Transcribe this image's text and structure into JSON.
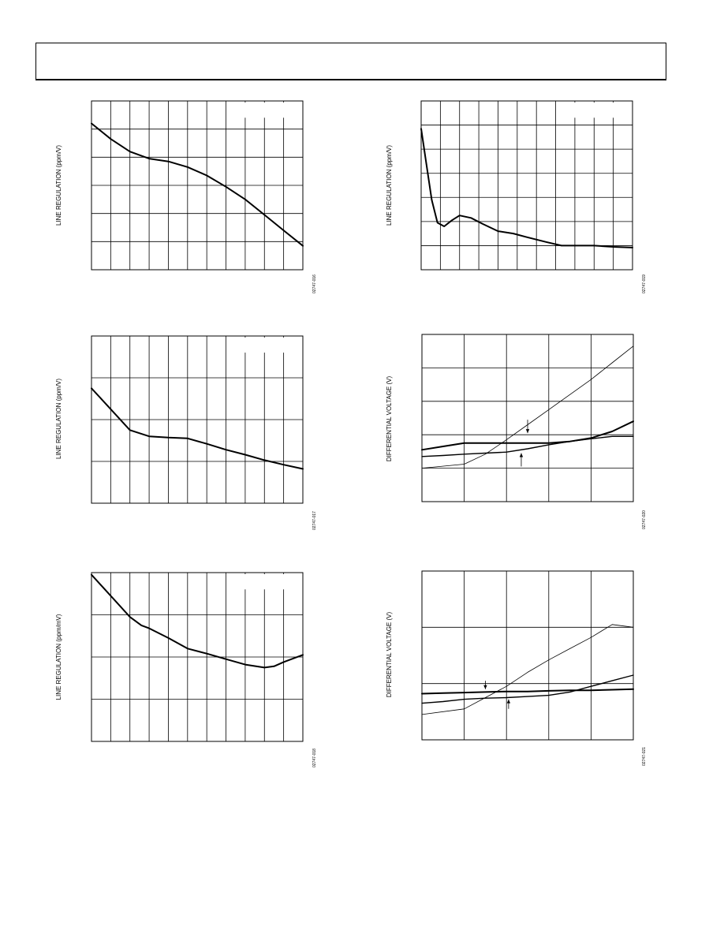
{
  "colors": {
    "line": "#000000",
    "grid": "#000000",
    "background": "#ffffff"
  },
  "charts": [
    {
      "type": "line",
      "ylabel": "LINE REGULATION (ppm/V)",
      "fig_code": "02747-016",
      "grid": true,
      "x_divisions": 11,
      "y_divisions": 6,
      "legend_box": "top-right",
      "xlim": [
        0,
        11
      ],
      "ylim": [
        0,
        6
      ],
      "series": [
        {
          "weight": "thick",
          "x": [
            0,
            1,
            2,
            3,
            4,
            5,
            6,
            7,
            8,
            9,
            10,
            11
          ],
          "y": [
            5.2,
            4.65,
            4.2,
            3.95,
            3.85,
            3.65,
            3.35,
            2.95,
            2.5,
            1.95,
            1.4,
            0.85
          ]
        }
      ]
    },
    {
      "type": "line",
      "ylabel": "LINE REGULATION (ppm/V)",
      "fig_code": "02747-019",
      "grid": true,
      "x_divisions": 11,
      "y_divisions": 7,
      "legend_box": "top-right",
      "xlim": [
        0,
        11
      ],
      "ylim": [
        0,
        7
      ],
      "series": [
        {
          "weight": "thick",
          "x": [
            0,
            0.25,
            0.55,
            0.85,
            1.2,
            1.6,
            2.0,
            2.6,
            3.2,
            4.0,
            4.8,
            5.5,
            6.5,
            7.3,
            8.0,
            9.0,
            10.0,
            11.0
          ],
          "y": [
            5.85,
            4.5,
            2.9,
            1.95,
            1.8,
            2.05,
            2.25,
            2.15,
            1.9,
            1.6,
            1.5,
            1.35,
            1.15,
            1.0,
            1.0,
            1.0,
            0.95,
            0.92
          ]
        }
      ]
    },
    {
      "type": "line",
      "ylabel": "LINE REGULATION (ppm/V)",
      "fig_code": "02747-017",
      "grid": true,
      "x_divisions": 11,
      "y_divisions": 4,
      "legend_box": "top-right",
      "xlim": [
        0,
        11
      ],
      "ylim": [
        0,
        4
      ],
      "series": [
        {
          "weight": "thick",
          "x": [
            0,
            1,
            2,
            3,
            4,
            5,
            6,
            7,
            8,
            9,
            10,
            11
          ],
          "y": [
            2.75,
            2.25,
            1.75,
            1.6,
            1.57,
            1.55,
            1.42,
            1.28,
            1.16,
            1.03,
            0.92,
            0.82
          ]
        }
      ]
    },
    {
      "type": "line",
      "ylabel": "DIFFERENTIAL VOLTAGE (V)",
      "fig_code": "02747-020",
      "grid": true,
      "x_divisions": 5,
      "y_divisions": 5,
      "legend_box": "",
      "xlim": [
        0,
        5
      ],
      "ylim": [
        0,
        5
      ],
      "series": [
        {
          "weight": "thin",
          "x": [
            0,
            1,
            1.5,
            2,
            2.5,
            3,
            3.5,
            4,
            4.5,
            5
          ],
          "y": [
            1.0,
            1.12,
            1.42,
            1.85,
            2.3,
            2.75,
            3.2,
            3.65,
            4.15,
            4.65
          ]
        },
        {
          "weight": "thick",
          "x": [
            0,
            0.5,
            1,
            1.5,
            2,
            2.5,
            3,
            3.5,
            4,
            4.5,
            5
          ],
          "y": [
            1.55,
            1.65,
            1.75,
            1.75,
            1.75,
            1.75,
            1.75,
            1.8,
            1.9,
            2.1,
            2.4
          ]
        },
        {
          "weight": "medium",
          "x": [
            0,
            0.5,
            1,
            1.5,
            2,
            2.5,
            3,
            3.5,
            4,
            4.5,
            5
          ],
          "y": [
            1.35,
            1.38,
            1.42,
            1.45,
            1.48,
            1.58,
            1.7,
            1.8,
            1.88,
            1.95,
            1.95
          ]
        }
      ],
      "arrows": [
        {
          "x1": 2.5,
          "y1": 2.45,
          "x2": 2.5,
          "y2": 2.05
        },
        {
          "x1": 2.35,
          "y1": 1.05,
          "x2": 2.35,
          "y2": 1.45
        }
      ]
    },
    {
      "type": "line",
      "ylabel": "LINE REGULATION (ppm/mV)",
      "fig_code": "02747-018",
      "grid": true,
      "x_divisions": 11,
      "y_divisions": 4,
      "legend_box": "top-right",
      "xlim": [
        0,
        11
      ],
      "ylim": [
        0,
        4
      ],
      "series": [
        {
          "weight": "thick",
          "x": [
            0,
            1,
            2,
            2.6,
            3,
            4,
            5,
            6,
            7,
            8,
            9,
            9.5,
            10,
            11
          ],
          "y": [
            3.95,
            3.45,
            2.95,
            2.75,
            2.68,
            2.45,
            2.2,
            2.08,
            1.95,
            1.82,
            1.75,
            1.78,
            1.88,
            2.05
          ]
        }
      ]
    },
    {
      "type": "line",
      "ylabel": "DIFFERENTIAL VOLTAGE (V)",
      "fig_code": "02747-021",
      "grid": true,
      "x_divisions": 5,
      "y_divisions": 3,
      "legend_box": "",
      "xlim": [
        0,
        5
      ],
      "ylim": [
        0,
        3
      ],
      "series": [
        {
          "weight": "thin",
          "x": [
            0,
            1,
            1.5,
            2,
            2.5,
            3,
            3.5,
            4,
            4.5,
            5
          ],
          "y": [
            0.45,
            0.55,
            0.75,
            0.95,
            1.2,
            1.42,
            1.62,
            1.82,
            2.05,
            2.0
          ]
        },
        {
          "weight": "thick",
          "x": [
            0,
            0.5,
            1,
            1.5,
            2,
            2.5,
            3,
            3.5,
            4,
            4.5,
            5
          ],
          "y": [
            0.82,
            0.83,
            0.84,
            0.85,
            0.86,
            0.86,
            0.87,
            0.88,
            0.88,
            0.89,
            0.9
          ]
        },
        {
          "weight": "medium",
          "x": [
            0,
            0.5,
            1,
            1.5,
            2,
            2.5,
            3,
            3.5,
            4,
            4.5,
            5
          ],
          "y": [
            0.65,
            0.68,
            0.72,
            0.74,
            0.75,
            0.77,
            0.79,
            0.85,
            0.95,
            1.05,
            1.15
          ]
        }
      ],
      "arrows": [
        {
          "x1": 1.5,
          "y1": 1.05,
          "x2": 1.5,
          "y2": 0.9
        },
        {
          "x1": 2.05,
          "y1": 0.55,
          "x2": 2.05,
          "y2": 0.72
        }
      ]
    }
  ]
}
